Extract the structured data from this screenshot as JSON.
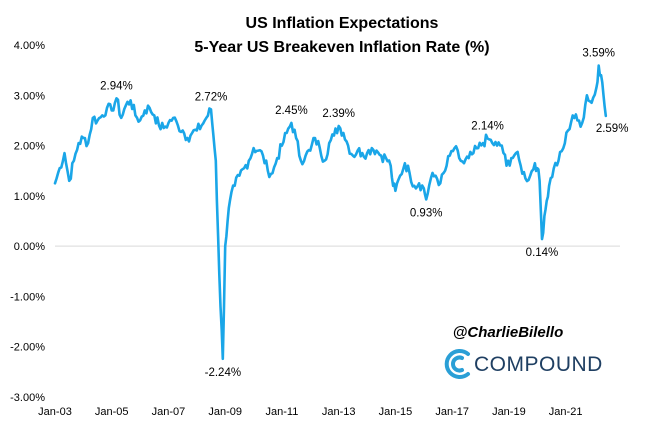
{
  "chart_data": {
    "type": "line",
    "title": "US Inflation Expectations",
    "subtitle": "5-Year US Breakeven Inflation Rate (%)",
    "xlabel": "",
    "ylabel": "",
    "ylim": [
      -3,
      4
    ],
    "yticks": [
      "4.00%",
      "3.00%",
      "2.00%",
      "1.00%",
      "0.00%",
      "-1.00%",
      "-2.00%",
      "-3.00%"
    ],
    "xticks": [
      "Jan-03",
      "Jan-05",
      "Jan-07",
      "Jan-09",
      "Jan-11",
      "Jan-13",
      "Jan-15",
      "Jan-17",
      "Jan-19",
      "Jan-21"
    ],
    "xrange": [
      "2003-01",
      "2022-12"
    ],
    "grid": false,
    "line_color": "#1aa6e8",
    "series": [
      {
        "values": [
          {
            "x": "2003-01",
            "y": 1.25
          },
          {
            "x": "2003-03",
            "y": 1.55
          },
          {
            "x": "2003-05",
            "y": 1.85
          },
          {
            "x": "2003-07",
            "y": 1.3
          },
          {
            "x": "2003-09",
            "y": 1.7
          },
          {
            "x": "2003-11",
            "y": 2.05
          },
          {
            "x": "2004-01",
            "y": 2.15
          },
          {
            "x": "2004-03",
            "y": 2.05
          },
          {
            "x": "2004-05",
            "y": 2.55
          },
          {
            "x": "2004-07",
            "y": 2.5
          },
          {
            "x": "2004-09",
            "y": 2.6
          },
          {
            "x": "2004-11",
            "y": 2.75
          },
          {
            "x": "2005-01",
            "y": 2.7
          },
          {
            "x": "2005-03",
            "y": 2.94
          },
          {
            "x": "2005-05",
            "y": 2.55
          },
          {
            "x": "2005-07",
            "y": 2.8
          },
          {
            "x": "2005-09",
            "y": 2.9
          },
          {
            "x": "2005-11",
            "y": 2.6
          },
          {
            "x": "2006-01",
            "y": 2.5
          },
          {
            "x": "2006-03",
            "y": 2.7
          },
          {
            "x": "2006-05",
            "y": 2.75
          },
          {
            "x": "2006-07",
            "y": 2.6
          },
          {
            "x": "2006-09",
            "y": 2.4
          },
          {
            "x": "2006-11",
            "y": 2.35
          },
          {
            "x": "2007-01",
            "y": 2.45
          },
          {
            "x": "2007-03",
            "y": 2.55
          },
          {
            "x": "2007-05",
            "y": 2.4
          },
          {
            "x": "2007-07",
            "y": 2.3
          },
          {
            "x": "2007-09",
            "y": 2.15
          },
          {
            "x": "2007-11",
            "y": 2.25
          },
          {
            "x": "2008-01",
            "y": 2.3
          },
          {
            "x": "2008-03",
            "y": 2.4
          },
          {
            "x": "2008-05",
            "y": 2.55
          },
          {
            "x": "2008-07",
            "y": 2.72
          },
          {
            "x": "2008-08",
            "y": 2.2
          },
          {
            "x": "2008-09",
            "y": 1.7
          },
          {
            "x": "2008-10",
            "y": 0.2
          },
          {
            "x": "2008-11",
            "y": -1.2
          },
          {
            "x": "2008-12",
            "y": -2.24
          },
          {
            "x": "2009-01",
            "y": 0.0
          },
          {
            "x": "2009-02",
            "y": 0.5
          },
          {
            "x": "2009-03",
            "y": 0.9
          },
          {
            "x": "2009-05",
            "y": 1.2
          },
          {
            "x": "2009-07",
            "y": 1.4
          },
          {
            "x": "2009-09",
            "y": 1.55
          },
          {
            "x": "2009-11",
            "y": 1.7
          },
          {
            "x": "2010-01",
            "y": 1.95
          },
          {
            "x": "2010-03",
            "y": 1.9
          },
          {
            "x": "2010-05",
            "y": 1.8
          },
          {
            "x": "2010-07",
            "y": 1.5
          },
          {
            "x": "2010-09",
            "y": 1.45
          },
          {
            "x": "2010-11",
            "y": 1.75
          },
          {
            "x": "2011-01",
            "y": 2.0
          },
          {
            "x": "2011-03",
            "y": 2.25
          },
          {
            "x": "2011-05",
            "y": 2.45
          },
          {
            "x": "2011-07",
            "y": 2.15
          },
          {
            "x": "2011-09",
            "y": 1.7
          },
          {
            "x": "2011-11",
            "y": 1.8
          },
          {
            "x": "2012-01",
            "y": 1.9
          },
          {
            "x": "2012-03",
            "y": 2.15
          },
          {
            "x": "2012-05",
            "y": 1.95
          },
          {
            "x": "2012-07",
            "y": 1.7
          },
          {
            "x": "2012-09",
            "y": 2.05
          },
          {
            "x": "2012-11",
            "y": 2.2
          },
          {
            "x": "2013-01",
            "y": 2.39
          },
          {
            "x": "2013-03",
            "y": 2.25
          },
          {
            "x": "2013-05",
            "y": 2.0
          },
          {
            "x": "2013-07",
            "y": 1.8
          },
          {
            "x": "2013-09",
            "y": 1.9
          },
          {
            "x": "2013-11",
            "y": 1.85
          },
          {
            "x": "2014-01",
            "y": 1.85
          },
          {
            "x": "2014-03",
            "y": 1.95
          },
          {
            "x": "2014-05",
            "y": 1.9
          },
          {
            "x": "2014-07",
            "y": 1.8
          },
          {
            "x": "2014-09",
            "y": 1.75
          },
          {
            "x": "2014-11",
            "y": 1.6
          },
          {
            "x": "2014-12",
            "y": 1.2
          },
          {
            "x": "2015-01",
            "y": 1.1
          },
          {
            "x": "2015-03",
            "y": 1.4
          },
          {
            "x": "2015-05",
            "y": 1.65
          },
          {
            "x": "2015-07",
            "y": 1.45
          },
          {
            "x": "2015-09",
            "y": 1.2
          },
          {
            "x": "2015-11",
            "y": 1.25
          },
          {
            "x": "2016-01",
            "y": 1.15
          },
          {
            "x": "2016-02",
            "y": 0.93
          },
          {
            "x": "2016-04",
            "y": 1.35
          },
          {
            "x": "2016-06",
            "y": 1.4
          },
          {
            "x": "2016-08",
            "y": 1.25
          },
          {
            "x": "2016-10",
            "y": 1.5
          },
          {
            "x": "2016-12",
            "y": 1.8
          },
          {
            "x": "2017-02",
            "y": 1.95
          },
          {
            "x": "2017-04",
            "y": 1.75
          },
          {
            "x": "2017-06",
            "y": 1.65
          },
          {
            "x": "2017-08",
            "y": 1.75
          },
          {
            "x": "2017-10",
            "y": 1.85
          },
          {
            "x": "2017-12",
            "y": 1.95
          },
          {
            "x": "2018-02",
            "y": 2.05
          },
          {
            "x": "2018-04",
            "y": 2.14
          },
          {
            "x": "2018-06",
            "y": 2.05
          },
          {
            "x": "2018-08",
            "y": 2.0
          },
          {
            "x": "2018-10",
            "y": 2.0
          },
          {
            "x": "2018-12",
            "y": 1.6
          },
          {
            "x": "2019-02",
            "y": 1.75
          },
          {
            "x": "2019-04",
            "y": 1.85
          },
          {
            "x": "2019-06",
            "y": 1.6
          },
          {
            "x": "2019-08",
            "y": 1.35
          },
          {
            "x": "2019-10",
            "y": 1.4
          },
          {
            "x": "2019-12",
            "y": 1.65
          },
          {
            "x": "2020-01",
            "y": 1.55
          },
          {
            "x": "2020-02",
            "y": 1.3
          },
          {
            "x": "2020-03",
            "y": 0.14
          },
          {
            "x": "2020-04",
            "y": 0.6
          },
          {
            "x": "2020-05",
            "y": 0.9
          },
          {
            "x": "2020-06",
            "y": 1.2
          },
          {
            "x": "2020-08",
            "y": 1.55
          },
          {
            "x": "2020-10",
            "y": 1.7
          },
          {
            "x": "2020-12",
            "y": 1.95
          },
          {
            "x": "2021-02",
            "y": 2.3
          },
          {
            "x": "2021-04",
            "y": 2.6
          },
          {
            "x": "2021-06",
            "y": 2.5
          },
          {
            "x": "2021-08",
            "y": 2.45
          },
          {
            "x": "2021-10",
            "y": 3.0
          },
          {
            "x": "2021-12",
            "y": 2.85
          },
          {
            "x": "2022-02",
            "y": 3.15
          },
          {
            "x": "2022-03",
            "y": 3.59
          },
          {
            "x": "2022-04",
            "y": 3.4
          },
          {
            "x": "2022-05",
            "y": 3.0
          },
          {
            "x": "2022-06",
            "y": 2.59
          }
        ]
      }
    ],
    "annotations": [
      {
        "text": "2.94%",
        "x": "2005-03",
        "y": 2.94,
        "position": "above"
      },
      {
        "text": "2.72%",
        "x": "2008-07",
        "y": 2.72,
        "position": "above"
      },
      {
        "text": "-2.24%",
        "x": "2008-12",
        "y": -2.24,
        "position": "below"
      },
      {
        "text": "2.45%",
        "x": "2011-05",
        "y": 2.45,
        "position": "above"
      },
      {
        "text": "2.39%",
        "x": "2013-01",
        "y": 2.39,
        "position": "above"
      },
      {
        "text": "0.93%",
        "x": "2016-02",
        "y": 0.93,
        "position": "below"
      },
      {
        "text": "2.14%",
        "x": "2018-04",
        "y": 2.14,
        "position": "above"
      },
      {
        "text": "0.14%",
        "x": "2020-03",
        "y": 0.14,
        "position": "below"
      },
      {
        "text": "3.59%",
        "x": "2022-03",
        "y": 3.59,
        "position": "above"
      },
      {
        "text": "2.59%",
        "x": "2022-06",
        "y": 2.59,
        "position": "right"
      }
    ]
  },
  "branding": {
    "handle": "@CharlieBilello",
    "logo_text": "COMPOUND",
    "logo_color": "#2a9fd6",
    "text_color": "#1f3f62"
  }
}
